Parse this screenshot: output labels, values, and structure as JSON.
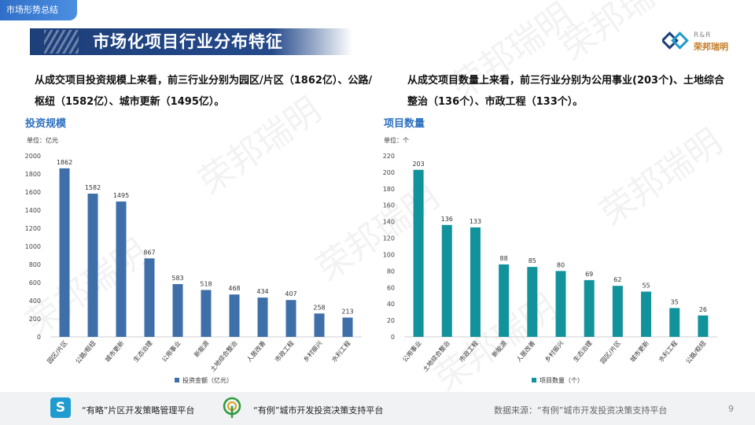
{
  "header": {
    "section_tag": "市场形势总结",
    "title": "市场化项目行业分布特征",
    "logo_text_top": "R&R",
    "logo_text_main": "荣邦瑞明",
    "brand_colors": {
      "navy": "#1d3f7a",
      "blue": "#2f6fc9",
      "teal": "#12939c",
      "bar_blue": "#3e6fa8"
    }
  },
  "summary": {
    "left": "从成交项目投资规模上来看，前三行业分别为园区/片区（1862亿）、公路/枢纽（1582亿）、城市更新（1495亿）。",
    "right": "从成交项目数量上来看，前三行业分别为公用事业(203个)、土地综合整治（136个）、市政工程（133个）。"
  },
  "watermark": "荣邦瑞明",
  "chart_data": [
    {
      "type": "bar",
      "title": "投资规模",
      "unit_label": "单位：亿元",
      "categories": [
        "园区/片区",
        "公路/枢纽",
        "城市更新",
        "生态治理",
        "公用事业",
        "新能源",
        "土地综合整治",
        "人居改善",
        "市政工程",
        "乡村振兴",
        "水利工程"
      ],
      "series": [
        {
          "name": "投资金额（亿元）",
          "values": [
            1862,
            1582,
            1495,
            867,
            583,
            518,
            468,
            434,
            407,
            258,
            213
          ],
          "color": "#3e6fa8"
        }
      ],
      "ylim": [
        0,
        2000
      ],
      "yticks": [
        0,
        200,
        400,
        600,
        800,
        1000,
        1200,
        1400,
        1600,
        1800,
        2000
      ],
      "grid": false,
      "legend": "bottom"
    },
    {
      "type": "bar",
      "title": "项目数量",
      "unit_label": "单位：个",
      "categories": [
        "公用事业",
        "土地综合整治",
        "市政工程",
        "新能源",
        "人居改善",
        "乡村振兴",
        "生态治理",
        "园区/片区",
        "城市更新",
        "水利工程",
        "公路/枢纽"
      ],
      "series": [
        {
          "name": "项目数量（个）",
          "values": [
            203,
            136,
            133,
            88,
            85,
            80,
            69,
            62,
            55,
            35,
            26
          ],
          "color": "#12939c"
        }
      ],
      "ylim": [
        0,
        220
      ],
      "yticks": [
        0,
        20,
        40,
        60,
        80,
        100,
        120,
        140,
        160,
        180,
        200,
        220
      ],
      "grid": false,
      "legend": "bottom"
    }
  ],
  "footer": {
    "platform1_icon": "S",
    "platform1": "“有略”片区开发策略管理平台",
    "platform2": "“有例”城市开发投资决策支持平台",
    "source": "数据来源：“有例”城市开发投资决策支持平台",
    "page": "9"
  }
}
